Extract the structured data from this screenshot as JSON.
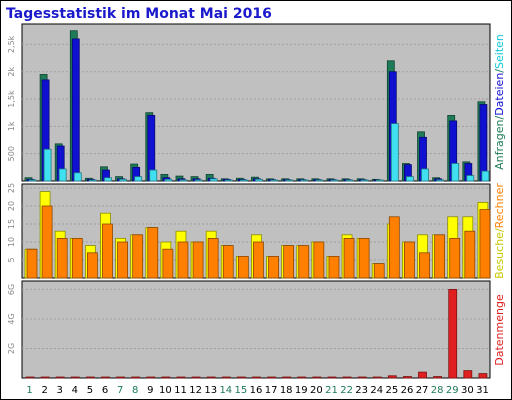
{
  "title": "Tagesstatistik im Monat Mai 2016",
  "right_labels": {
    "top": [
      {
        "text": "Anfragen",
        "color": "#1e7b57"
      },
      {
        "text": "/",
        "color": "#1e7b57"
      },
      {
        "text": "Dateien",
        "color": "#1010d0"
      },
      {
        "text": "/",
        "color": "#1e7b57"
      },
      {
        "text": "Seiten",
        "color": "#10c8d8"
      }
    ],
    "middle": [
      {
        "text": "Besuche",
        "color": "#c8c800"
      },
      {
        "text": "/",
        "color": "#c8c800"
      },
      {
        "text": "Rechner",
        "color": "#ff8000"
      }
    ],
    "bottom": [
      {
        "text": "Datenmenge",
        "color": "#e02020"
      }
    ]
  },
  "colors": {
    "panel_bg": "#c0c0c0",
    "hits": "#1e7b57",
    "files": "#1010d0",
    "pages": "#40e0f0",
    "visits": "#ffff00",
    "sites": "#ff8000",
    "kbytes": "#e02020",
    "weekend_label": "#1e7b57"
  },
  "chart_data": [
    {
      "type": "bar",
      "categories": [
        "1",
        "2",
        "3",
        "4",
        "5",
        "6",
        "7",
        "8",
        "9",
        "10",
        "11",
        "12",
        "13",
        "14",
        "15",
        "16",
        "17",
        "18",
        "19",
        "20",
        "21",
        "22",
        "23",
        "24",
        "25",
        "26",
        "27",
        "28",
        "29",
        "30",
        "31"
      ],
      "weekend_days": [
        "1",
        "7",
        "8",
        "14",
        "15",
        "21",
        "22",
        "28",
        "29"
      ],
      "y_ticks": [
        {
          "value": 500,
          "label": "500"
        },
        {
          "value": 1000,
          "label": "1k"
        },
        {
          "value": 1500,
          "label": "1,5k"
        },
        {
          "value": 2000,
          "label": "2k"
        },
        {
          "value": 2500,
          "label": "2,5k"
        }
      ],
      "ylim": [
        0,
        2800
      ],
      "series": [
        {
          "name": "Anfragen",
          "values": [
            60,
            1950,
            680,
            2750,
            50,
            260,
            80,
            310,
            1250,
            120,
            90,
            80,
            120,
            40,
            50,
            70,
            40,
            40,
            40,
            40,
            40,
            40,
            40,
            30,
            2200,
            320,
            900,
            60,
            1200,
            350,
            1450
          ]
        },
        {
          "name": "Dateien",
          "values": [
            30,
            1850,
            640,
            2600,
            30,
            200,
            40,
            250,
            1200,
            60,
            40,
            40,
            50,
            30,
            30,
            40,
            25,
            25,
            25,
            25,
            25,
            25,
            25,
            20,
            2000,
            300,
            800,
            40,
            1100,
            320,
            1400
          ]
        },
        {
          "name": "Seiten",
          "values": [
            20,
            580,
            220,
            150,
            10,
            60,
            30,
            80,
            200,
            30,
            20,
            20,
            40,
            10,
            20,
            30,
            10,
            10,
            10,
            10,
            10,
            10,
            10,
            10,
            1050,
            80,
            220,
            20,
            320,
            100,
            180
          ]
        }
      ]
    },
    {
      "type": "bar",
      "categories": [
        "1",
        "2",
        "3",
        "4",
        "5",
        "6",
        "7",
        "8",
        "9",
        "10",
        "11",
        "12",
        "13",
        "14",
        "15",
        "16",
        "17",
        "18",
        "19",
        "20",
        "21",
        "22",
        "23",
        "24",
        "25",
        "26",
        "27",
        "28",
        "29",
        "30",
        "31"
      ],
      "y_ticks": [
        {
          "value": 5,
          "label": "5"
        },
        {
          "value": 10,
          "label": "10"
        },
        {
          "value": 15,
          "label": "15"
        },
        {
          "value": 20,
          "label": "20"
        },
        {
          "value": 25,
          "label": "25"
        }
      ],
      "ylim": [
        0,
        25
      ],
      "series": [
        {
          "name": "Besuche",
          "values": [
            8,
            24,
            13,
            11,
            9,
            18,
            11,
            12,
            14,
            10,
            13,
            10,
            13,
            9,
            6,
            12,
            6,
            9,
            9,
            10,
            6,
            12,
            11,
            4,
            15,
            10,
            12,
            12,
            17,
            17,
            21
          ]
        },
        {
          "name": "Rechner",
          "values": [
            8,
            20,
            11,
            11,
            7,
            15,
            10,
            12,
            14,
            8,
            10,
            10,
            11,
            9,
            6,
            10,
            6,
            9,
            9,
            10,
            6,
            11,
            11,
            4,
            17,
            10,
            7,
            12,
            11,
            13,
            19
          ]
        }
      ]
    },
    {
      "type": "bar",
      "categories": [
        "1",
        "2",
        "3",
        "4",
        "5",
        "6",
        "7",
        "8",
        "9",
        "10",
        "11",
        "12",
        "13",
        "14",
        "15",
        "16",
        "17",
        "18",
        "19",
        "20",
        "21",
        "22",
        "23",
        "24",
        "25",
        "26",
        "27",
        "28",
        "29",
        "30",
        "31"
      ],
      "y_ticks": [
        {
          "value": 2,
          "label": "2G"
        },
        {
          "value": 4,
          "label": "4G"
        },
        {
          "value": 6,
          "label": "6G"
        }
      ],
      "ylim": [
        0,
        6.3
      ],
      "series": [
        {
          "name": "Datenmenge",
          "values": [
            0.05,
            0.05,
            0.05,
            0.05,
            0.05,
            0.05,
            0.05,
            0.05,
            0.05,
            0.05,
            0.05,
            0.05,
            0.05,
            0.05,
            0.05,
            0.05,
            0.05,
            0.05,
            0.05,
            0.05,
            0.05,
            0.05,
            0.05,
            0.05,
            0.15,
            0.1,
            0.4,
            0.1,
            6.0,
            0.5,
            0.3
          ]
        }
      ]
    }
  ]
}
